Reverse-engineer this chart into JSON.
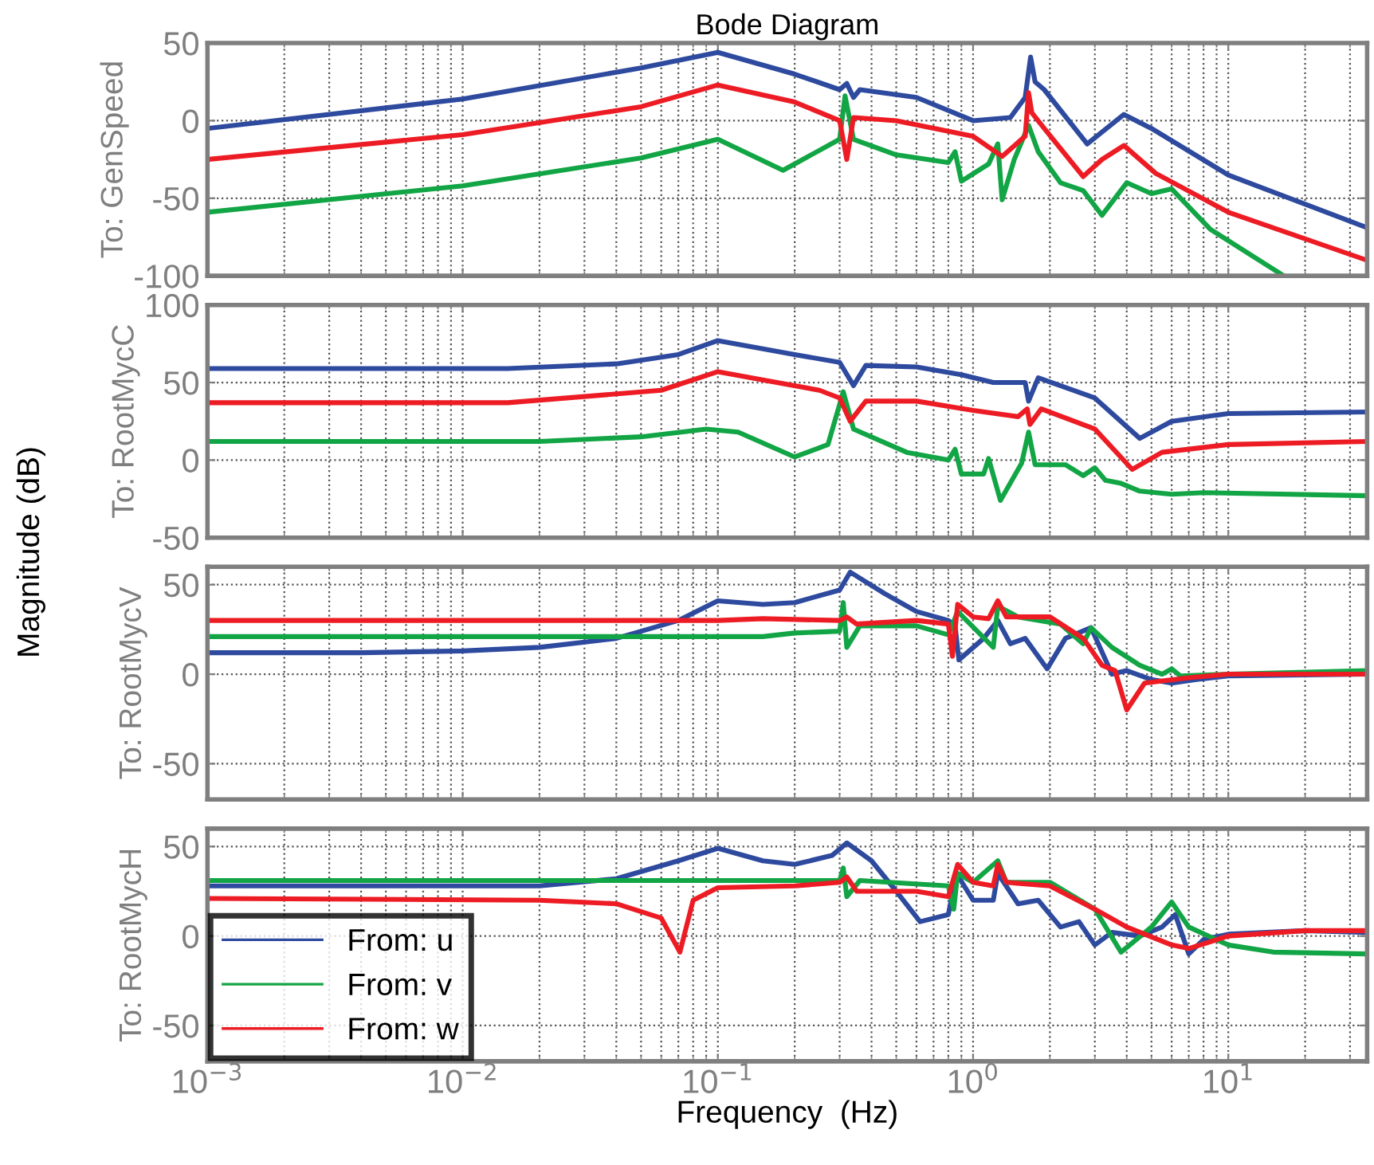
{
  "chart_data": [
    {
      "type": "line",
      "title": "Bode Diagram",
      "ylabel": "To: GenSpeed",
      "annotations": [
        "Magnitude (dB)"
      ],
      "xlim": [
        0.001,
        35
      ],
      "ylim": [
        -100,
        50
      ],
      "yticks": [
        -100,
        -50,
        0,
        50
      ],
      "xticks": [
        {
          "value": 0.001,
          "label": null
        },
        {
          "value": 0.01,
          "label": null
        },
        {
          "value": 0.1,
          "label": null
        },
        {
          "value": 1,
          "label": null
        },
        {
          "value": 10,
          "label": null
        }
      ],
      "log": "x",
      "grid": true,
      "tick_labels": "y",
      "line_style": "solid",
      "series": [
        {
          "color": "#2e4a9e",
          "x": [
            0.001,
            0.01,
            0.05,
            0.1,
            0.2,
            0.3,
            0.32,
            0.34,
            0.36,
            0.6,
            1.0,
            1.4,
            1.6,
            1.68,
            1.75,
            1.9,
            2.8,
            3.9,
            5,
            10,
            35
          ],
          "values": [
            -5,
            14,
            34,
            44,
            30,
            20,
            24,
            15,
            20,
            15,
            0,
            2,
            15,
            41,
            25,
            20,
            -15,
            4,
            -5,
            -35,
            -69
          ]
        },
        {
          "color": "#12a545",
          "x": [
            0.001,
            0.01,
            0.05,
            0.1,
            0.18,
            0.3,
            0.315,
            0.34,
            0.5,
            0.8,
            0.85,
            0.9,
            1.15,
            1.25,
            1.3,
            1.45,
            1.65,
            1.8,
            2.2,
            2.7,
            3.2,
            4,
            5,
            6,
            8.5,
            16.5
          ],
          "values": [
            -59,
            -42,
            -24,
            -12,
            -32,
            -12,
            16,
            -12,
            -22,
            -27,
            -20,
            -39,
            -28,
            -15,
            -51,
            -25,
            -3,
            -20,
            -40,
            -45,
            -61,
            -40,
            -47,
            -44,
            -70,
            -100
          ]
        },
        {
          "color": "#ed1c24",
          "x": [
            0.001,
            0.01,
            0.05,
            0.1,
            0.2,
            0.3,
            0.32,
            0.34,
            0.5,
            1.0,
            1.3,
            1.6,
            1.65,
            1.7,
            1.9,
            2.7,
            3.2,
            3.9,
            5.2,
            10,
            35
          ],
          "values": [
            -25,
            -9,
            9,
            23,
            12,
            0,
            -25,
            2,
            0,
            -10,
            -23,
            -10,
            18,
            5,
            -5,
            -36,
            -25,
            -16,
            -34,
            -59,
            -90
          ]
        }
      ]
    },
    {
      "type": "line",
      "ylabel": "To: RootMycC",
      "xlim": [
        0.001,
        35
      ],
      "ylim": [
        -50,
        100
      ],
      "yticks": [
        -50,
        0,
        50,
        100
      ],
      "xticks": [
        {
          "value": 0.001,
          "label": null
        },
        {
          "value": 0.01,
          "label": null
        },
        {
          "value": 0.1,
          "label": null
        },
        {
          "value": 1,
          "label": null
        },
        {
          "value": 10,
          "label": null
        }
      ],
      "log": "x",
      "grid": true,
      "tick_labels": "y",
      "line_style": "solid",
      "series": [
        {
          "color": "#2e4a9e",
          "x": [
            0.001,
            0.015,
            0.04,
            0.07,
            0.1,
            0.2,
            0.3,
            0.34,
            0.38,
            0.6,
            0.9,
            1.2,
            1.6,
            1.65,
            1.8,
            3,
            4.5,
            6,
            10,
            35
          ],
          "values": [
            59,
            59,
            62,
            68,
            77,
            68,
            63,
            48,
            61,
            60,
            55,
            50,
            50,
            38,
            53,
            40,
            14,
            25,
            30,
            31
          ]
        },
        {
          "color": "#12a545",
          "x": [
            0.001,
            0.02,
            0.05,
            0.09,
            0.12,
            0.2,
            0.27,
            0.31,
            0.34,
            0.55,
            0.8,
            0.85,
            0.9,
            1.1,
            1.15,
            1.28,
            1.55,
            1.65,
            1.75,
            2.3,
            2.7,
            3,
            3.3,
            3.8,
            4.5,
            6,
            8,
            35
          ],
          "values": [
            12,
            12,
            15,
            20,
            18,
            2,
            10,
            44,
            20,
            5,
            0,
            7,
            -9,
            -9,
            1,
            -26,
            -2,
            18,
            -3,
            -3,
            -10,
            -5,
            -13,
            -15,
            -20,
            -22,
            -21,
            -23
          ]
        },
        {
          "color": "#ed1c24",
          "x": [
            0.001,
            0.015,
            0.06,
            0.1,
            0.25,
            0.3,
            0.33,
            0.38,
            0.6,
            1.0,
            1.5,
            1.63,
            1.67,
            1.85,
            3,
            4.2,
            5.5,
            10,
            35
          ],
          "values": [
            37,
            37,
            45,
            57,
            45,
            40,
            25,
            38,
            38,
            32,
            28,
            33,
            23,
            33,
            20,
            -6,
            5,
            10,
            12
          ]
        }
      ]
    },
    {
      "type": "line",
      "ylabel": "To: RootMycV",
      "xlim": [
        0.001,
        35
      ],
      "ylim": [
        -70,
        60
      ],
      "yticks": [
        -50,
        0,
        50
      ],
      "xticks": [
        {
          "value": 0.001,
          "label": null
        },
        {
          "value": 0.01,
          "label": null
        },
        {
          "value": 0.1,
          "label": null
        },
        {
          "value": 1,
          "label": null
        },
        {
          "value": 10,
          "label": null
        }
      ],
      "log": "x",
      "grid": true,
      "tick_labels": "y",
      "line_style": "solid",
      "series": [
        {
          "color": "#2e4a9e",
          "x": [
            0.001,
            0.004,
            0.01,
            0.02,
            0.04,
            0.07,
            0.1,
            0.15,
            0.2,
            0.3,
            0.33,
            0.45,
            0.6,
            0.8,
            0.85,
            0.88,
            1.1,
            1.25,
            1.4,
            1.6,
            1.95,
            2.3,
            2.9,
            3.5,
            4,
            5,
            6,
            7.5,
            10,
            35
          ],
          "values": [
            12,
            12,
            13,
            15,
            20,
            30,
            41,
            39,
            40,
            47,
            57,
            45,
            35,
            30,
            27,
            8,
            20,
            30,
            17,
            20,
            3,
            20,
            26,
            0,
            2,
            -3,
            -5,
            -3,
            -1,
            0
          ]
        },
        {
          "color": "#12a545",
          "x": [
            0.001,
            0.15,
            0.2,
            0.3,
            0.31,
            0.32,
            0.36,
            0.6,
            0.8,
            0.87,
            1.2,
            1.25,
            1.5,
            2.2,
            2.7,
            2.9,
            3.5,
            4.5,
            5.5,
            6,
            6.5,
            10,
            35
          ],
          "values": [
            21,
            21,
            23,
            24,
            40,
            15,
            27,
            27,
            22,
            35,
            15,
            38,
            32,
            28,
            17,
            26,
            15,
            5,
            0,
            3,
            -1,
            0,
            2
          ]
        },
        {
          "color": "#ed1c24",
          "x": [
            0.001,
            0.1,
            0.15,
            0.3,
            0.32,
            0.35,
            0.6,
            0.8,
            0.83,
            0.87,
            1.0,
            1.15,
            1.25,
            1.35,
            2.0,
            2.7,
            3.2,
            3.6,
            4,
            4.7,
            7,
            10,
            35
          ],
          "values": [
            30,
            30,
            31,
            30,
            32,
            28,
            30,
            28,
            10,
            39,
            32,
            31,
            41,
            32,
            32,
            20,
            5,
            2,
            -20,
            -5,
            -2,
            0,
            0
          ]
        }
      ]
    },
    {
      "type": "line",
      "ylabel": "To: RootMycH",
      "xlabel": "Frequency  (Hz)",
      "xlim": [
        0.001,
        35
      ],
      "ylim": [
        -70,
        60
      ],
      "yticks": [
        -50,
        0,
        50
      ],
      "xticks": [
        {
          "value": 0.001,
          "label": "10$^{−3}$"
        },
        {
          "value": 0.01,
          "label": "10$^{−2}$"
        },
        {
          "value": 0.1,
          "label": "10$^{−1}$"
        },
        {
          "value": 1,
          "label": "10$^{0}$"
        },
        {
          "value": 10,
          "label": "10$^{1}$"
        }
      ],
      "log": "x",
      "grid": true,
      "legend": "bottom left",
      "line_style": "solid",
      "series": [
        {
          "name": "From: u",
          "color": "#2e4a9e",
          "x": [
            0.001,
            0.02,
            0.04,
            0.07,
            0.1,
            0.15,
            0.2,
            0.28,
            0.32,
            0.4,
            0.5,
            0.62,
            0.8,
            0.86,
            1.0,
            1.2,
            1.25,
            1.5,
            1.8,
            2.2,
            2.6,
            3,
            3.5,
            4.5,
            5.5,
            6.2,
            7,
            8,
            10,
            20,
            35
          ],
          "values": [
            28,
            28,
            32,
            42,
            49,
            42,
            40,
            45,
            52,
            42,
            25,
            8,
            12,
            35,
            20,
            20,
            35,
            18,
            20,
            5,
            8,
            -5,
            2,
            0,
            5,
            12,
            -10,
            -2,
            1,
            3,
            2
          ]
        },
        {
          "name": "From: v",
          "color": "#12a545",
          "x": [
            0.001,
            0.3,
            0.31,
            0.32,
            0.36,
            0.8,
            0.84,
            0.87,
            1.0,
            1.25,
            1.35,
            2.0,
            3,
            3.8,
            5,
            6,
            7,
            10,
            15,
            35
          ],
          "values": [
            31,
            31,
            38,
            22,
            31,
            28,
            15,
            35,
            30,
            42,
            30,
            30,
            15,
            -9,
            5,
            19,
            5,
            -5,
            -9,
            -10
          ]
        },
        {
          "name": "From: w",
          "color": "#ed1c24",
          "x": [
            0.001,
            0.02,
            0.04,
            0.06,
            0.071,
            0.08,
            0.1,
            0.2,
            0.3,
            0.32,
            0.35,
            0.6,
            0.8,
            0.87,
            1.0,
            1.2,
            1.25,
            1.35,
            2,
            3,
            4,
            6,
            7,
            10,
            20,
            35
          ],
          "values": [
            21,
            20,
            18,
            10,
            -9,
            20,
            27,
            28,
            30,
            33,
            25,
            25,
            22,
            40,
            30,
            28,
            40,
            30,
            28,
            15,
            5,
            -5,
            -7,
            0,
            3,
            3
          ]
        }
      ]
    }
  ]
}
